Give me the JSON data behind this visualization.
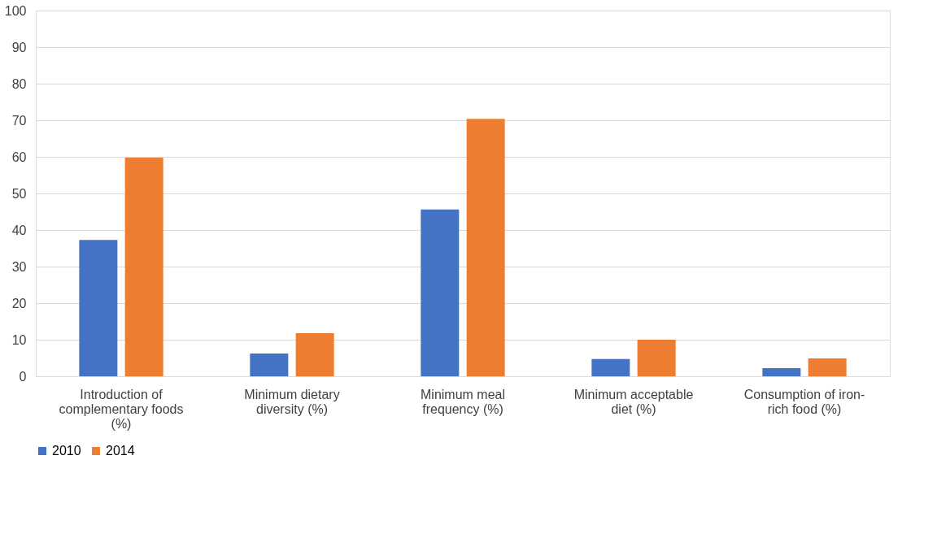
{
  "chart_data": {
    "type": "bar",
    "categories": [
      "Introduction of complementary foods (%)",
      "Minimum dietary diversity (%)",
      "Minimum meal frequency (%)",
      "Minimum acceptable diet (%)",
      "Consumption of iron-rich food (%)"
    ],
    "series": [
      {
        "name": "2010",
        "color": "#4472c4",
        "values": [
          37.3,
          6.2,
          45.6,
          4.7,
          2.2
        ]
      },
      {
        "name": "2014",
        "color": "#ed7d31",
        "values": [
          59.8,
          11.8,
          70.4,
          10.0,
          4.9
        ]
      }
    ],
    "ylim": [
      0,
      100
    ],
    "yticks": [
      0,
      10,
      20,
      30,
      40,
      50,
      60,
      70,
      80,
      90,
      100
    ],
    "grid": "y",
    "legend": "bottom"
  }
}
